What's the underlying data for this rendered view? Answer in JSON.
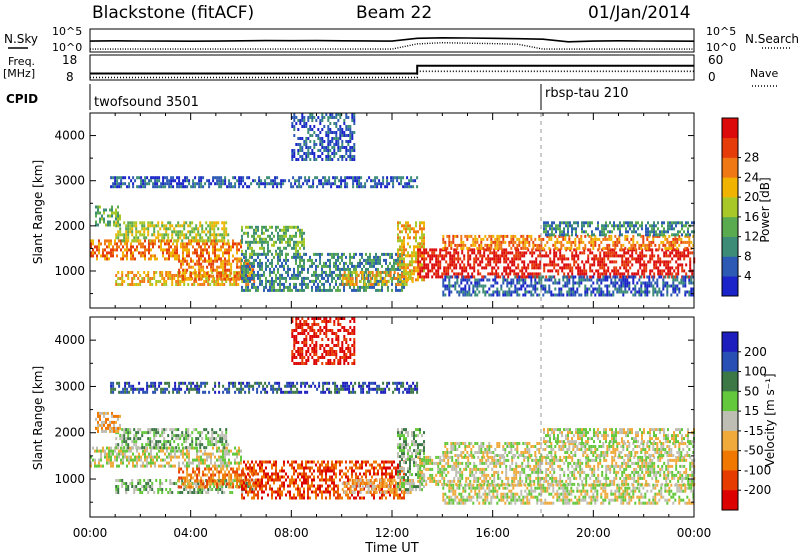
{
  "header": {
    "title": "Blackstone (fitACF)",
    "beam": "Beam 22",
    "date": "01/Jan/2014"
  },
  "chart_data": [
    {
      "type": "line",
      "panel": "noise",
      "left_label": "N.Sky",
      "right_label": "N.Search",
      "left_ticks": [
        "10^5",
        "10^0"
      ],
      "right_ticks": [
        "10^5",
        "10^0"
      ],
      "scale": "log",
      "ylim": [
        1,
        100000
      ],
      "series": [
        {
          "name": "N.Sky",
          "style": "solid",
          "x": [
            0,
            1,
            2,
            3,
            4,
            5,
            6,
            7,
            8,
            9,
            10,
            11,
            12,
            13,
            14,
            15,
            16,
            17,
            18,
            19,
            20,
            21,
            22,
            23,
            24
          ],
          "y": [
            300,
            350,
            320,
            300,
            280,
            300,
            350,
            400,
            380,
            400,
            350,
            330,
            300,
            1500,
            2000,
            1800,
            1500,
            1200,
            900,
            200,
            300,
            350,
            320,
            300,
            280
          ]
        },
        {
          "name": "N.Search",
          "style": "dotted",
          "x": [
            0,
            1,
            2,
            3,
            4,
            5,
            6,
            7,
            8,
            9,
            10,
            11,
            12,
            13,
            14,
            15,
            16,
            17,
            18,
            19,
            20,
            21,
            22,
            23,
            24
          ],
          "y": [
            3,
            3,
            3,
            3,
            3,
            3,
            3,
            3,
            3,
            3,
            3,
            3,
            3,
            60,
            120,
            90,
            70,
            50,
            3,
            3,
            3,
            3,
            3,
            3,
            3
          ]
        }
      ]
    },
    {
      "type": "line",
      "panel": "frequency",
      "left_label": "Freq.",
      "left_unit": "[MHz]",
      "right_label": "Nave",
      "left_ticks": [
        "18",
        "8"
      ],
      "right_ticks": [
        "60",
        "0"
      ],
      "ylim": [
        8,
        18
      ],
      "y2lim": [
        0,
        60
      ],
      "series": [
        {
          "name": "Freq.",
          "style": "solid",
          "x": [
            0,
            13,
            13,
            18,
            18,
            24
          ],
          "y": [
            10.5,
            10.5,
            14,
            14,
            14,
            14
          ]
        },
        {
          "name": "Nave",
          "style": "dotted",
          "x": [
            0,
            13,
            13,
            24
          ],
          "y": [
            4,
            4,
            21,
            21
          ]
        }
      ]
    },
    {
      "type": "table",
      "panel": "cpid",
      "label": "CPID",
      "entries": [
        {
          "name": "twofsound",
          "id": "3501",
          "start": 0
        },
        {
          "name": "rbsp-tau",
          "id": "210",
          "start": 18
        }
      ]
    },
    {
      "type": "heatmap",
      "panel": "power",
      "ylabel": "Slant Range [km]",
      "yticks": [
        1000,
        2000,
        3000,
        4000
      ],
      "ylim": [
        180,
        4500
      ],
      "xlim": [
        0,
        24
      ],
      "colorbar": {
        "label": "Power [dB]",
        "ticks": [
          "4",
          "8",
          "12",
          "16",
          "20",
          "24",
          "28"
        ],
        "colors": [
          "#1a24c8",
          "#2d5ab4",
          "#3c8c78",
          "#5aaa50",
          "#a8c828",
          "#f0b400",
          "#f07814",
          "#e63c0a",
          "#dc0a0a"
        ]
      },
      "regions": [
        {
          "t": [
            0.0,
            6.0
          ],
          "r": [
            1300,
            1700
          ],
          "level": 6
        },
        {
          "t": [
            1.0,
            5.5
          ],
          "r": [
            1700,
            2100
          ],
          "level": 4
        },
        {
          "t": [
            0.2,
            1.2
          ],
          "r": [
            2050,
            2450
          ],
          "level": 3
        },
        {
          "t": [
            1.0,
            6.5
          ],
          "r": [
            700,
            1000
          ],
          "level": 5
        },
        {
          "t": [
            3.5,
            6.5
          ],
          "r": [
            850,
            1250
          ],
          "level": 6
        },
        {
          "t": [
            0.8,
            13.0
          ],
          "r": [
            2900,
            3100
          ],
          "level": 1
        },
        {
          "t": [
            6.0,
            12.5
          ],
          "r": [
            600,
            1400
          ],
          "level": 2
        },
        {
          "t": [
            6.0,
            8.5
          ],
          "r": [
            1400,
            2000
          ],
          "level": 3
        },
        {
          "t": [
            10.0,
            12.8
          ],
          "r": [
            700,
            1000
          ],
          "level": 5
        },
        {
          "t": [
            12.2,
            13.3
          ],
          "r": [
            800,
            2100
          ],
          "level": 5
        },
        {
          "t": [
            8.0,
            10.5
          ],
          "r": [
            3500,
            4500
          ],
          "level": 1
        },
        {
          "t": [
            13.0,
            24.0
          ],
          "r": [
            900,
            1500
          ],
          "level": 8
        },
        {
          "t": [
            14.0,
            24.0
          ],
          "r": [
            1500,
            1800
          ],
          "level": 6
        },
        {
          "t": [
            18.0,
            24.0
          ],
          "r": [
            1800,
            2100
          ],
          "level": 2
        },
        {
          "t": [
            14.0,
            24.0
          ],
          "r": [
            500,
            900
          ],
          "level": 1
        }
      ]
    },
    {
      "type": "heatmap",
      "panel": "velocity",
      "ylabel": "Slant Range [km]",
      "xlabel": "Time UT",
      "yticks": [
        1000,
        2000,
        3000,
        4000
      ],
      "ylim": [
        180,
        4500
      ],
      "xlim": [
        0,
        24
      ],
      "xticks": [
        "00:00",
        "04:00",
        "08:00",
        "12:00",
        "16:00",
        "20:00",
        "00:00"
      ],
      "colorbar": {
        "label": "Velocity [m s⁻¹]",
        "ticks": [
          "200",
          "100",
          "50",
          "15",
          "-15",
          "-50",
          "-100",
          "-200"
        ],
        "colors": [
          "#1e1ebe",
          "#2850b4",
          "#3c7846",
          "#64c83c",
          "#bebeb4",
          "#f0aa3c",
          "#f07800",
          "#e63c00",
          "#dc0000"
        ]
      },
      "regions": [
        {
          "t": [
            0.0,
            6.0
          ],
          "r": [
            1300,
            1700
          ],
          "level": 4
        },
        {
          "t": [
            1.0,
            5.5
          ],
          "r": [
            1700,
            2100
          ],
          "level": 3
        },
        {
          "t": [
            0.2,
            1.2
          ],
          "r": [
            2050,
            2450
          ],
          "level": 5
        },
        {
          "t": [
            1.0,
            6.5
          ],
          "r": [
            700,
            1000
          ],
          "level": 3
        },
        {
          "t": [
            3.5,
            6.5
          ],
          "r": [
            850,
            1250
          ],
          "level": 6
        },
        {
          "t": [
            0.8,
            13.0
          ],
          "r": [
            2900,
            3100
          ],
          "level": 1
        },
        {
          "t": [
            6.0,
            12.5
          ],
          "r": [
            600,
            1400
          ],
          "level": 7
        },
        {
          "t": [
            10.0,
            12.8
          ],
          "r": [
            700,
            1000
          ],
          "level": 5
        },
        {
          "t": [
            12.2,
            13.3
          ],
          "r": [
            800,
            2100
          ],
          "level": 3
        },
        {
          "t": [
            8.0,
            10.5
          ],
          "r": [
            3500,
            4500
          ],
          "level": 8
        },
        {
          "t": [
            13.0,
            24.0
          ],
          "r": [
            900,
            1500
          ],
          "level": 4
        },
        {
          "t": [
            14.0,
            24.0
          ],
          "r": [
            1500,
            1800
          ],
          "level": 4
        },
        {
          "t": [
            18.0,
            24.0
          ],
          "r": [
            1800,
            2100
          ],
          "level": 4
        },
        {
          "t": [
            14.0,
            24.0
          ],
          "r": [
            500,
            900
          ],
          "level": 4
        }
      ]
    }
  ]
}
